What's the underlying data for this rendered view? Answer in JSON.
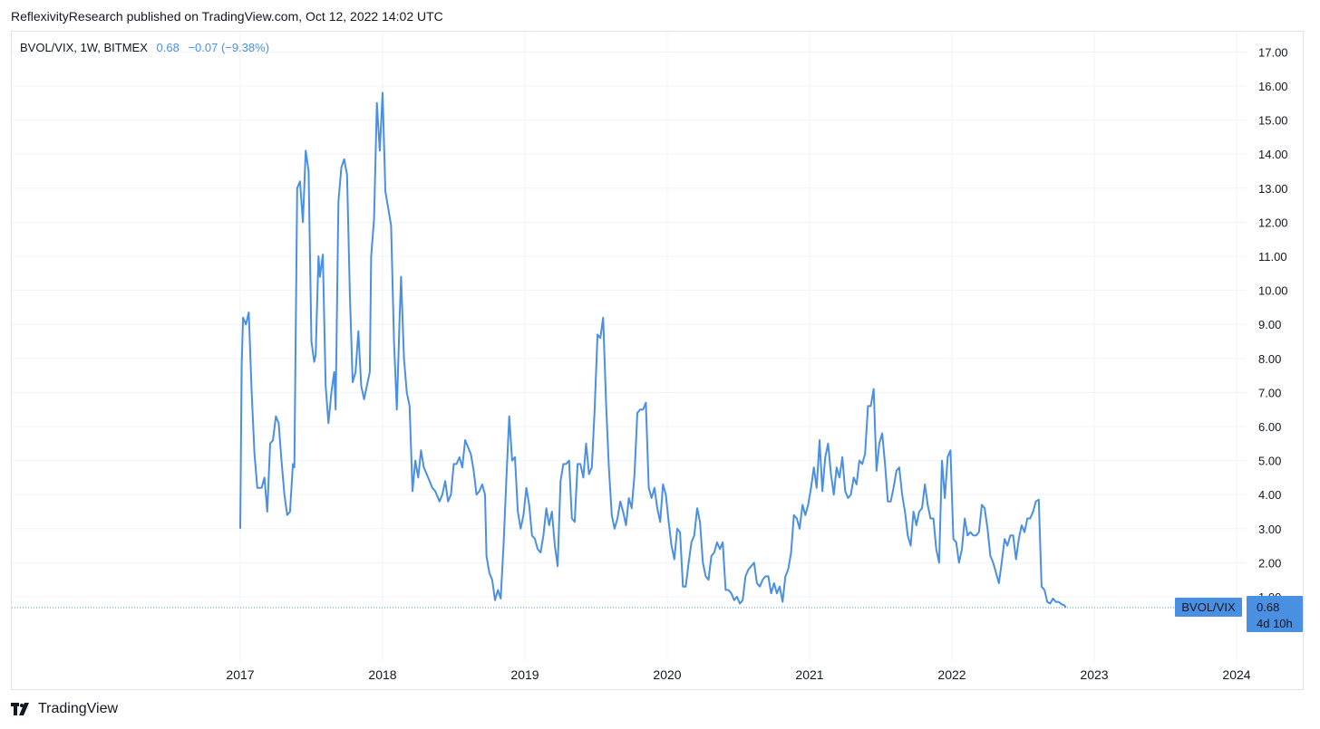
{
  "header": {
    "published": "ReflexivityResearch published on TradingView.com, Oct 12, 2022 14:02 UTC"
  },
  "legend": {
    "symbol": "BVOL/VIX, 1W, BITMEX",
    "last": "0.68",
    "change": "−0.07 (−9.38%)"
  },
  "price_label": {
    "name": "BVOL/VIX",
    "value": "0.68",
    "countdown": "4d 10h"
  },
  "footer": {
    "brand": "TradingView"
  },
  "colors": {
    "line": "#4a90e2",
    "grid": "#f0f3fa",
    "label_bg": "#4a90e2"
  },
  "chart_data": {
    "type": "line",
    "title": "",
    "xlabel": "",
    "ylabel": "",
    "x_ticks": [
      "2017",
      "2018",
      "2019",
      "2020",
      "2021",
      "2022",
      "2023",
      "2024"
    ],
    "y_ticks": [
      "1.00",
      "2.00",
      "3.00",
      "4.00",
      "5.00",
      "6.00",
      "7.00",
      "8.00",
      "9.00",
      "10.00",
      "11.00",
      "12.00",
      "13.00",
      "14.00",
      "15.00",
      "16.00",
      "17.00"
    ],
    "ylim": [
      -0.5,
      17.5
    ],
    "xlim": [
      2016.0,
      2024.0
    ],
    "grid": true,
    "last_value": 0.68,
    "series": [
      {
        "points": [
          [
            2017.0,
            3.0
          ],
          [
            2017.01,
            7.8
          ],
          [
            2017.02,
            9.2
          ],
          [
            2017.04,
            9.0
          ],
          [
            2017.06,
            9.35
          ],
          [
            2017.08,
            7.0
          ],
          [
            2017.1,
            5.2
          ],
          [
            2017.12,
            4.2
          ],
          [
            2017.15,
            4.2
          ],
          [
            2017.17,
            4.5
          ],
          [
            2017.19,
            3.5
          ],
          [
            2017.21,
            5.5
          ],
          [
            2017.23,
            5.6
          ],
          [
            2017.25,
            6.3
          ],
          [
            2017.27,
            6.1
          ],
          [
            2017.29,
            5.0
          ],
          [
            2017.31,
            4.0
          ],
          [
            2017.33,
            3.4
          ],
          [
            2017.35,
            3.5
          ],
          [
            2017.37,
            4.9
          ],
          [
            2017.38,
            4.8
          ],
          [
            2017.4,
            13.0
          ],
          [
            2017.42,
            13.2
          ],
          [
            2017.44,
            12.0
          ],
          [
            2017.46,
            14.1
          ],
          [
            2017.48,
            13.5
          ],
          [
            2017.5,
            8.5
          ],
          [
            2017.52,
            7.9
          ],
          [
            2017.53,
            8.1
          ],
          [
            2017.55,
            11.0
          ],
          [
            2017.56,
            10.4
          ],
          [
            2017.58,
            11.05
          ],
          [
            2017.6,
            7.2
          ],
          [
            2017.62,
            6.1
          ],
          [
            2017.64,
            7.0
          ],
          [
            2017.66,
            7.6
          ],
          [
            2017.67,
            6.5
          ],
          [
            2017.69,
            12.6
          ],
          [
            2017.71,
            13.6
          ],
          [
            2017.73,
            13.85
          ],
          [
            2017.75,
            13.4
          ],
          [
            2017.77,
            9.9
          ],
          [
            2017.79,
            7.3
          ],
          [
            2017.81,
            7.6
          ],
          [
            2017.83,
            8.8
          ],
          [
            2017.85,
            7.2
          ],
          [
            2017.87,
            6.8
          ],
          [
            2017.89,
            7.2
          ],
          [
            2017.91,
            7.6
          ],
          [
            2017.92,
            11.0
          ],
          [
            2017.94,
            12.1
          ],
          [
            2017.96,
            15.5
          ],
          [
            2017.98,
            14.1
          ],
          [
            2018.0,
            15.8
          ],
          [
            2018.02,
            12.9
          ],
          [
            2018.04,
            12.4
          ],
          [
            2018.06,
            11.9
          ],
          [
            2018.08,
            8.5
          ],
          [
            2018.1,
            6.5
          ],
          [
            2018.12,
            9.2
          ],
          [
            2018.13,
            10.4
          ],
          [
            2018.15,
            8.0
          ],
          [
            2018.17,
            7.0
          ],
          [
            2018.19,
            6.6
          ],
          [
            2018.21,
            4.1
          ],
          [
            2018.23,
            5.0
          ],
          [
            2018.25,
            4.5
          ],
          [
            2018.27,
            5.3
          ],
          [
            2018.29,
            4.8
          ],
          [
            2018.31,
            4.6
          ],
          [
            2018.33,
            4.4
          ],
          [
            2018.35,
            4.2
          ],
          [
            2018.37,
            4.1
          ],
          [
            2018.4,
            3.8
          ],
          [
            2018.42,
            4.0
          ],
          [
            2018.44,
            4.4
          ],
          [
            2018.46,
            3.8
          ],
          [
            2018.48,
            4.0
          ],
          [
            2018.5,
            4.9
          ],
          [
            2018.52,
            4.9
          ],
          [
            2018.54,
            5.1
          ],
          [
            2018.56,
            4.8
          ],
          [
            2018.58,
            5.6
          ],
          [
            2018.6,
            5.4
          ],
          [
            2018.62,
            5.2
          ],
          [
            2018.64,
            4.7
          ],
          [
            2018.66,
            4.0
          ],
          [
            2018.68,
            4.1
          ],
          [
            2018.7,
            4.3
          ],
          [
            2018.72,
            4.0
          ],
          [
            2018.73,
            2.2
          ],
          [
            2018.75,
            1.7
          ],
          [
            2018.77,
            1.5
          ],
          [
            2018.79,
            0.9
          ],
          [
            2018.81,
            1.2
          ],
          [
            2018.83,
            0.95
          ],
          [
            2018.85,
            2.5
          ],
          [
            2018.87,
            4.5
          ],
          [
            2018.89,
            6.3
          ],
          [
            2018.91,
            5.0
          ],
          [
            2018.93,
            5.1
          ],
          [
            2018.95,
            3.5
          ],
          [
            2018.97,
            3.0
          ],
          [
            2018.99,
            3.4
          ],
          [
            2019.01,
            4.2
          ],
          [
            2019.03,
            3.7
          ],
          [
            2019.05,
            2.8
          ],
          [
            2019.07,
            2.7
          ],
          [
            2019.09,
            2.4
          ],
          [
            2019.11,
            2.3
          ],
          [
            2019.13,
            2.8
          ],
          [
            2019.15,
            3.6
          ],
          [
            2019.17,
            3.1
          ],
          [
            2019.19,
            3.5
          ],
          [
            2019.21,
            2.5
          ],
          [
            2019.23,
            1.9
          ],
          [
            2019.25,
            4.4
          ],
          [
            2019.27,
            4.9
          ],
          [
            2019.29,
            4.9
          ],
          [
            2019.31,
            5.0
          ],
          [
            2019.33,
            3.3
          ],
          [
            2019.35,
            3.2
          ],
          [
            2019.37,
            4.9
          ],
          [
            2019.39,
            4.9
          ],
          [
            2019.41,
            4.5
          ],
          [
            2019.43,
            5.5
          ],
          [
            2019.45,
            4.6
          ],
          [
            2019.47,
            4.8
          ],
          [
            2019.49,
            6.5
          ],
          [
            2019.51,
            8.7
          ],
          [
            2019.53,
            8.6
          ],
          [
            2019.55,
            9.2
          ],
          [
            2019.57,
            6.7
          ],
          [
            2019.59,
            4.8
          ],
          [
            2019.61,
            3.4
          ],
          [
            2019.63,
            3.0
          ],
          [
            2019.65,
            3.3
          ],
          [
            2019.67,
            3.8
          ],
          [
            2019.69,
            3.5
          ],
          [
            2019.71,
            3.1
          ],
          [
            2019.73,
            3.9
          ],
          [
            2019.75,
            3.6
          ],
          [
            2019.77,
            4.6
          ],
          [
            2019.79,
            6.4
          ],
          [
            2019.81,
            6.5
          ],
          [
            2019.83,
            6.5
          ],
          [
            2019.85,
            6.7
          ],
          [
            2019.87,
            4.2
          ],
          [
            2019.89,
            3.9
          ],
          [
            2019.91,
            4.2
          ],
          [
            2019.93,
            3.6
          ],
          [
            2019.95,
            3.2
          ],
          [
            2019.97,
            4.3
          ],
          [
            2019.99,
            4.0
          ],
          [
            2020.01,
            3.2
          ],
          [
            2020.03,
            2.5
          ],
          [
            2020.05,
            2.1
          ],
          [
            2020.07,
            3.0
          ],
          [
            2020.09,
            2.9
          ],
          [
            2020.11,
            1.3
          ],
          [
            2020.13,
            1.3
          ],
          [
            2020.15,
            2.0
          ],
          [
            2020.17,
            2.6
          ],
          [
            2020.19,
            2.8
          ],
          [
            2020.21,
            3.6
          ],
          [
            2020.23,
            3.2
          ],
          [
            2020.25,
            2.0
          ],
          [
            2020.27,
            1.6
          ],
          [
            2020.29,
            1.5
          ],
          [
            2020.31,
            2.2
          ],
          [
            2020.33,
            2.3
          ],
          [
            2020.35,
            2.6
          ],
          [
            2020.37,
            2.4
          ],
          [
            2020.39,
            2.6
          ],
          [
            2020.41,
            1.2
          ],
          [
            2020.43,
            1.2
          ],
          [
            2020.45,
            1.1
          ],
          [
            2020.47,
            0.9
          ],
          [
            2020.49,
            1.0
          ],
          [
            2020.51,
            0.8
          ],
          [
            2020.53,
            0.9
          ],
          [
            2020.55,
            1.6
          ],
          [
            2020.57,
            1.8
          ],
          [
            2020.59,
            1.9
          ],
          [
            2020.61,
            2.0
          ],
          [
            2020.63,
            1.4
          ],
          [
            2020.65,
            1.3
          ],
          [
            2020.67,
            1.5
          ],
          [
            2020.69,
            1.6
          ],
          [
            2020.71,
            1.6
          ],
          [
            2020.73,
            1.1
          ],
          [
            2020.75,
            1.4
          ],
          [
            2020.77,
            1.1
          ],
          [
            2020.79,
            1.3
          ],
          [
            2020.81,
            0.85
          ],
          [
            2020.83,
            1.6
          ],
          [
            2020.85,
            1.8
          ],
          [
            2020.87,
            2.3
          ],
          [
            2020.89,
            3.4
          ],
          [
            2020.91,
            3.3
          ],
          [
            2020.93,
            3.0
          ],
          [
            2020.95,
            3.7
          ],
          [
            2020.97,
            3.4
          ],
          [
            2020.99,
            3.7
          ],
          [
            2021.01,
            4.2
          ],
          [
            2021.03,
            4.8
          ],
          [
            2021.05,
            4.2
          ],
          [
            2021.07,
            5.6
          ],
          [
            2021.09,
            4.1
          ],
          [
            2021.11,
            5.1
          ],
          [
            2021.13,
            5.5
          ],
          [
            2021.15,
            4.6
          ],
          [
            2021.17,
            4.0
          ],
          [
            2021.19,
            4.8
          ],
          [
            2021.21,
            4.5
          ],
          [
            2021.23,
            5.1
          ],
          [
            2021.25,
            4.1
          ],
          [
            2021.27,
            3.9
          ],
          [
            2021.29,
            4.0
          ],
          [
            2021.31,
            4.5
          ],
          [
            2021.33,
            4.3
          ],
          [
            2021.35,
            5.0
          ],
          [
            2021.37,
            4.9
          ],
          [
            2021.39,
            5.2
          ],
          [
            2021.41,
            6.6
          ],
          [
            2021.43,
            6.6
          ],
          [
            2021.45,
            7.1
          ],
          [
            2021.47,
            4.7
          ],
          [
            2021.49,
            5.5
          ],
          [
            2021.51,
            5.8
          ],
          [
            2021.53,
            4.9
          ],
          [
            2021.55,
            3.8
          ],
          [
            2021.57,
            3.8
          ],
          [
            2021.59,
            4.2
          ],
          [
            2021.61,
            4.7
          ],
          [
            2021.63,
            4.8
          ],
          [
            2021.65,
            4.0
          ],
          [
            2021.67,
            3.5
          ],
          [
            2021.69,
            2.8
          ],
          [
            2021.71,
            2.5
          ],
          [
            2021.73,
            3.5
          ],
          [
            2021.75,
            3.1
          ],
          [
            2021.77,
            3.5
          ],
          [
            2021.79,
            3.6
          ],
          [
            2021.81,
            4.3
          ],
          [
            2021.83,
            3.7
          ],
          [
            2021.85,
            3.3
          ],
          [
            2021.87,
            3.3
          ],
          [
            2021.89,
            2.4
          ],
          [
            2021.91,
            2.0
          ],
          [
            2021.93,
            5.0
          ],
          [
            2021.95,
            3.9
          ],
          [
            2021.97,
            5.1
          ],
          [
            2021.99,
            5.3
          ],
          [
            2022.01,
            2.7
          ],
          [
            2022.03,
            2.6
          ],
          [
            2022.05,
            2.0
          ],
          [
            2022.07,
            2.4
          ],
          [
            2022.09,
            3.3
          ],
          [
            2022.11,
            2.8
          ],
          [
            2022.13,
            2.9
          ],
          [
            2022.15,
            2.8
          ],
          [
            2022.17,
            2.8
          ],
          [
            2022.19,
            2.9
          ],
          [
            2022.21,
            3.7
          ],
          [
            2022.23,
            3.6
          ],
          [
            2022.25,
            3.0
          ],
          [
            2022.27,
            2.2
          ],
          [
            2022.29,
            2.0
          ],
          [
            2022.31,
            1.7
          ],
          [
            2022.33,
            1.4
          ],
          [
            2022.35,
            2.0
          ],
          [
            2022.37,
            2.7
          ],
          [
            2022.39,
            2.5
          ],
          [
            2022.41,
            2.8
          ],
          [
            2022.43,
            2.8
          ],
          [
            2022.45,
            2.1
          ],
          [
            2022.47,
            2.7
          ],
          [
            2022.49,
            3.1
          ],
          [
            2022.51,
            2.9
          ],
          [
            2022.53,
            3.3
          ],
          [
            2022.55,
            3.3
          ],
          [
            2022.57,
            3.5
          ],
          [
            2022.59,
            3.8
          ],
          [
            2022.61,
            3.85
          ],
          [
            2022.63,
            1.3
          ],
          [
            2022.65,
            1.2
          ],
          [
            2022.67,
            0.85
          ],
          [
            2022.69,
            0.8
          ],
          [
            2022.71,
            0.95
          ],
          [
            2022.73,
            0.85
          ],
          [
            2022.75,
            0.85
          ],
          [
            2022.77,
            0.78
          ],
          [
            2022.79,
            0.75
          ],
          [
            2022.8,
            0.68
          ]
        ]
      }
    ]
  }
}
